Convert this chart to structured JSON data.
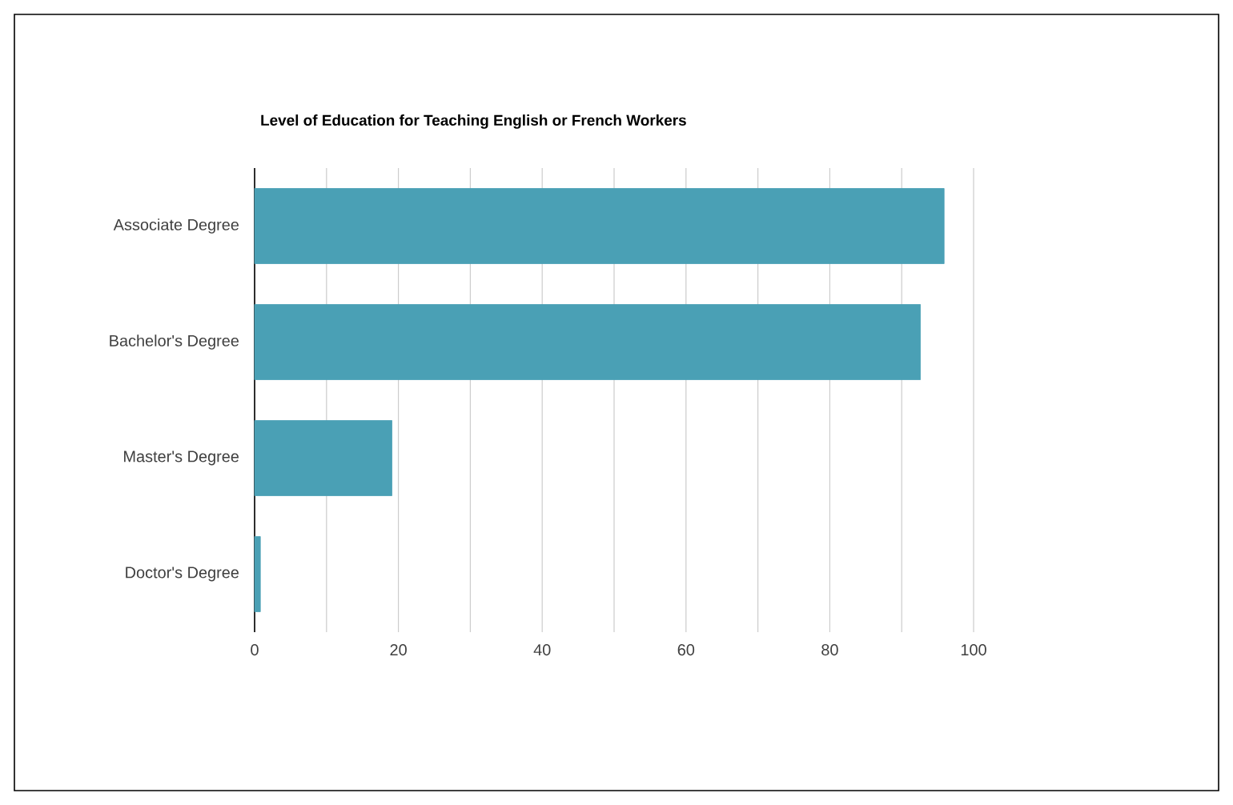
{
  "chart_data": {
    "type": "bar",
    "orientation": "horizontal",
    "title": "Level of Education for Teaching English or French Workers",
    "categories": [
      "Associate Degree",
      "Bachelor's Degree",
      "Master's Degree",
      "Doctor's Degree"
    ],
    "values": [
      95.9,
      92.6,
      19.1,
      0.8
    ],
    "color": "#4aa0b5",
    "xlim": [
      0,
      100
    ],
    "xticks": [
      0,
      {
        "value": 10,
        "label": null
      },
      20,
      {
        "value": 30,
        "label": null
      },
      40,
      {
        "value": 50,
        "label": null
      },
      60,
      {
        "value": 70,
        "label": null
      },
      80,
      {
        "value": 90,
        "label": null
      },
      100
    ],
    "grid": "x"
  }
}
